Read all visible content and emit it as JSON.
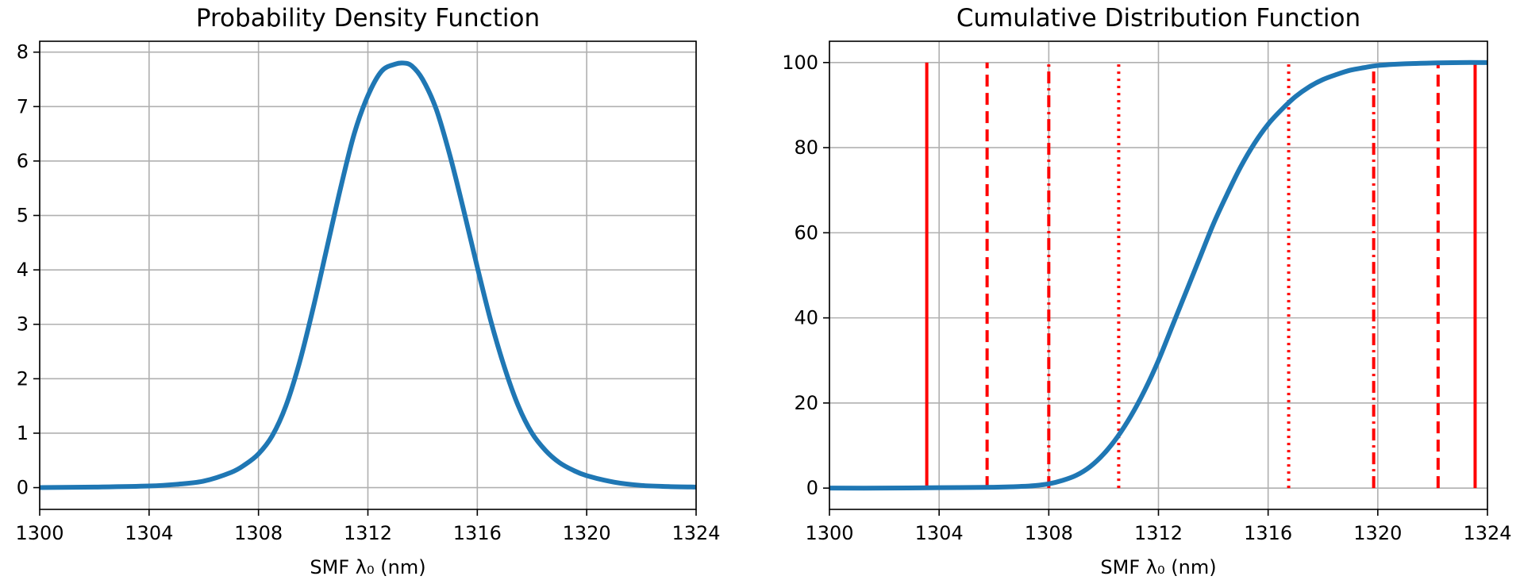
{
  "chart_data": [
    {
      "type": "line",
      "title": "Probability Density Function",
      "xlabel": "SMF λ₀ (nm)",
      "ylabel": "",
      "xlim": [
        1300,
        1324
      ],
      "ylim": [
        -0.4,
        8.2
      ],
      "xticks": [
        1300,
        1304,
        1308,
        1312,
        1316,
        1320,
        1324
      ],
      "yticks": [
        0,
        1,
        2,
        3,
        4,
        5,
        6,
        7,
        8
      ],
      "grid": true,
      "series": [
        {
          "color": "#1f77b4",
          "x": [
            1300,
            1302,
            1304,
            1305,
            1306,
            1307,
            1307.5,
            1308,
            1308.5,
            1309,
            1309.5,
            1310,
            1310.5,
            1311,
            1311.5,
            1312,
            1312.5,
            1313,
            1313.3,
            1313.6,
            1314,
            1314.5,
            1315,
            1315.5,
            1316,
            1316.5,
            1317,
            1317.5,
            1318,
            1318.5,
            1319,
            1319.5,
            1320,
            1321,
            1322,
            1323,
            1324
          ],
          "y": [
            0,
            0.01,
            0.03,
            0.06,
            0.12,
            0.28,
            0.42,
            0.62,
            0.95,
            1.5,
            2.3,
            3.3,
            4.4,
            5.5,
            6.5,
            7.2,
            7.65,
            7.78,
            7.8,
            7.75,
            7.5,
            6.95,
            6.1,
            5.1,
            4.05,
            3.05,
            2.2,
            1.5,
            1.0,
            0.68,
            0.46,
            0.32,
            0.22,
            0.1,
            0.04,
            0.02,
            0.01
          ]
        }
      ]
    },
    {
      "type": "line",
      "title": "Cumulative Distribution Function",
      "xlabel": "SMF λ₀ (nm)",
      "ylabel": "",
      "xlim": [
        1300,
        1324
      ],
      "ylim": [
        -5,
        105
      ],
      "xticks": [
        1300,
        1304,
        1308,
        1312,
        1316,
        1320,
        1324
      ],
      "yticks": [
        0,
        20,
        40,
        60,
        80,
        100
      ],
      "grid": true,
      "series": [
        {
          "color": "#1f77b4",
          "x": [
            1300,
            1302,
            1304,
            1306,
            1307,
            1307.5,
            1308,
            1308.5,
            1309,
            1309.5,
            1310,
            1310.5,
            1311,
            1311.5,
            1312,
            1312.5,
            1313,
            1313.5,
            1314,
            1314.5,
            1315,
            1315.5,
            1316,
            1316.5,
            1317,
            1317.5,
            1318,
            1318.5,
            1319,
            1319.5,
            1320,
            1321,
            1322,
            1323,
            1324
          ],
          "y": [
            0,
            0,
            0.1,
            0.2,
            0.4,
            0.6,
            1.0,
            1.8,
            3.0,
            5.0,
            8.0,
            12,
            17,
            23,
            30,
            38,
            46,
            54,
            62,
            69,
            75.5,
            81,
            85.5,
            89,
            92,
            94.3,
            96,
            97.2,
            98.2,
            98.8,
            99.3,
            99.7,
            99.9,
            100,
            100
          ]
        }
      ],
      "vlines": [
        {
          "x": 1303.55,
          "style": "solid",
          "color": "#ff0000"
        },
        {
          "x": 1305.75,
          "style": "dashed",
          "color": "#ff0000"
        },
        {
          "x": 1308.0,
          "style": "dashdot",
          "color": "#ff0000"
        },
        {
          "x": 1310.55,
          "style": "dotted",
          "color": "#ff0000"
        },
        {
          "x": 1316.75,
          "style": "dotted",
          "color": "#ff0000"
        },
        {
          "x": 1319.85,
          "style": "dashdot",
          "color": "#ff0000"
        },
        {
          "x": 1322.2,
          "style": "dashed",
          "color": "#ff0000"
        },
        {
          "x": 1323.55,
          "style": "solid",
          "color": "#ff0000"
        }
      ],
      "vline_range": [
        0,
        100
      ]
    }
  ]
}
